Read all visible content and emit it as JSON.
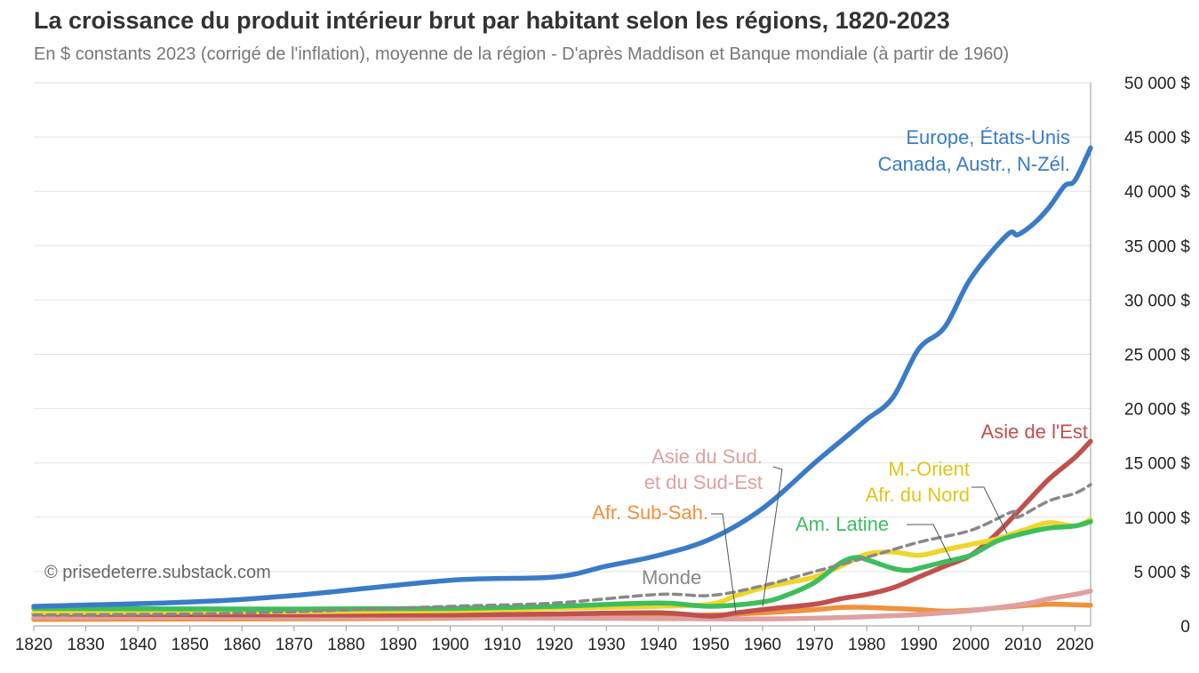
{
  "chart_data": {
    "type": "line",
    "title": "La croissance du produit intérieur brut par habitant selon les régions, 1820-2023",
    "subtitle": "En $ constants 2023 (corrigé de l'inflation), moyenne de la région - D'après Maddison et Banque mondiale (à partir de 1960)",
    "xlabel": "",
    "ylabel": "",
    "xlim": [
      1820,
      2023
    ],
    "ylim": [
      0,
      50000
    ],
    "grid": true,
    "y_axis_side": "right",
    "x_ticks": [
      1820,
      1830,
      1840,
      1850,
      1860,
      1870,
      1880,
      1890,
      1900,
      1910,
      1920,
      1930,
      1940,
      1950,
      1960,
      1970,
      1980,
      1990,
      2000,
      2010,
      2020
    ],
    "y_tick_labels": [
      "0",
      "5 000 $",
      "10 000 $",
      "15 000 $",
      "20 000 $",
      "25 000 $",
      "30 000 $",
      "35 000 $",
      "40 000 $",
      "45 000 $",
      "50 000 $"
    ],
    "y_tick_values": [
      0,
      5000,
      10000,
      15000,
      20000,
      25000,
      30000,
      35000,
      40000,
      45000,
      50000
    ],
    "credit": "© prisedeterre.substack.com",
    "series": [
      {
        "name": "Afr. Sub-Sah.",
        "color": "#F0913C",
        "dash": false,
        "x": [
          1820,
          1870,
          1900,
          1930,
          1950,
          1960,
          1970,
          1975,
          1980,
          1990,
          1995,
          2000,
          2005,
          2010,
          2015,
          2020,
          2023
        ],
        "y": [
          600,
          650,
          700,
          850,
          1000,
          1200,
          1500,
          1700,
          1700,
          1500,
          1350,
          1450,
          1650,
          1850,
          2000,
          1950,
          1900
        ]
      },
      {
        "name": "Asie du Sud. et du Sud-Est",
        "color": "#E0A0A0",
        "dash": false,
        "x": [
          1820,
          1900,
          1950,
          1960,
          1970,
          1980,
          1990,
          2000,
          2010,
          2015,
          2020,
          2023
        ],
        "y": [
          800,
          750,
          650,
          650,
          700,
          850,
          1050,
          1400,
          2000,
          2500,
          2900,
          3200
        ]
      },
      {
        "name": "Asie de l'Est",
        "color": "#C0504D",
        "dash": false,
        "x": [
          1820,
          1870,
          1900,
          1920,
          1940,
          1950,
          1955,
          1960,
          1970,
          1975,
          1980,
          1985,
          1990,
          1995,
          2000,
          2005,
          2010,
          2015,
          2020,
          2023
        ],
        "y": [
          1100,
          1000,
          1000,
          1100,
          1200,
          900,
          1200,
          1500,
          2000,
          2500,
          2900,
          3500,
          4500,
          5500,
          6500,
          8500,
          11000,
          13500,
          15500,
          17000
        ]
      },
      {
        "name": "M.-Orient Afr. du Nord",
        "color": "#F0D52A",
        "dash": false,
        "x": [
          1820,
          1870,
          1900,
          1920,
          1940,
          1950,
          1955,
          1960,
          1965,
          1970,
          1975,
          1980,
          1985,
          1990,
          1995,
          2000,
          2005,
          2010,
          2015,
          2020,
          2023
        ],
        "y": [
          1200,
          1300,
          1400,
          1600,
          1800,
          2000,
          2800,
          3500,
          4000,
          4500,
          5500,
          6600,
          6800,
          6500,
          7000,
          7500,
          8000,
          8800,
          9500,
          9200,
          9800
        ]
      },
      {
        "name": "Am. Latine",
        "color": "#3DBE5C",
        "dash": false,
        "x": [
          1820,
          1870,
          1900,
          1920,
          1940,
          1950,
          1960,
          1965,
          1970,
          1975,
          1978,
          1980,
          1985,
          1988,
          1990,
          1995,
          2000,
          2005,
          2010,
          2015,
          2020,
          2023
        ],
        "y": [
          1600,
          1550,
          1600,
          1800,
          2100,
          1800,
          2200,
          2900,
          4000,
          5800,
          6300,
          6100,
          5300,
          5100,
          5300,
          5900,
          6500,
          7800,
          8500,
          9000,
          9200,
          9600
        ]
      },
      {
        "name": "Monde",
        "color": "#888888",
        "dash": true,
        "x": [
          1820,
          1850,
          1870,
          1900,
          1920,
          1940,
          1950,
          1960,
          1970,
          1980,
          1990,
          2000,
          2008,
          2009,
          2015,
          2020,
          2023
        ],
        "y": [
          1000,
          1100,
          1300,
          1800,
          2100,
          2900,
          2800,
          3700,
          5000,
          6300,
          7700,
          8800,
          10500,
          10000,
          11500,
          12200,
          13000
        ]
      },
      {
        "name": "Europe, États-Unis Canada, Austr., N-Zél.",
        "color": "#3A7BC8",
        "dash": false,
        "x": [
          1820,
          1850,
          1870,
          1900,
          1920,
          1930,
          1940,
          1950,
          1960,
          1970,
          1975,
          1980,
          1985,
          1990,
          1995,
          2000,
          2007,
          2009,
          2012,
          2015,
          2018,
          2020,
          2023
        ],
        "y": [
          1800,
          2200,
          2800,
          4200,
          4500,
          5500,
          6500,
          8000,
          10800,
          15000,
          17000,
          19000,
          21000,
          25500,
          27500,
          32000,
          36000,
          36000,
          37000,
          38500,
          40500,
          41000,
          44000
        ]
      }
    ],
    "labels": {
      "europe_line1": "Europe, États-Unis",
      "europe_line2": "Canada, Austr., N-Zél.",
      "east_asia": "Asie de l'Est",
      "mena_line1": "M.-Orient",
      "mena_line2": "Afr. du Nord",
      "south_asia_line1": "Asie du Sud.",
      "south_asia_line2": "et du Sud-Est",
      "ssa": "Afr. Sub-Sah.",
      "latam": "Am. Latine",
      "world": "Monde"
    }
  }
}
